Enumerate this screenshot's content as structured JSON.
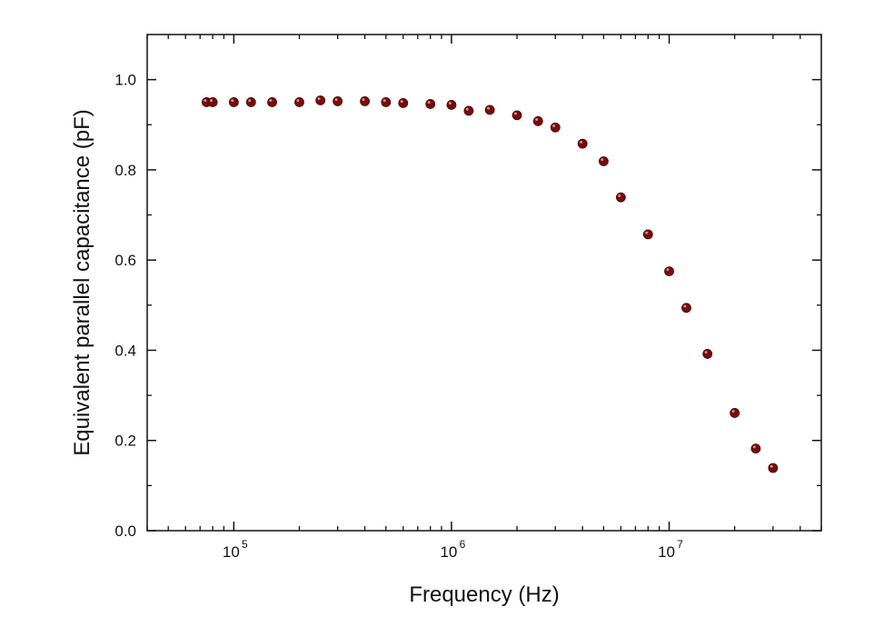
{
  "chart_data": {
    "type": "scatter",
    "title": "",
    "xlabel": "Frequency (Hz)",
    "ylabel": "Equivalent parallel capacitance (pF)",
    "x_scale": "log",
    "xlim": [
      40000,
      50000000
    ],
    "ylim": [
      0,
      1.1
    ],
    "x_ticks": [
      {
        "value": 100000,
        "base": "10",
        "exp": "5"
      },
      {
        "value": 1000000,
        "base": "10",
        "exp": "6"
      },
      {
        "value": 10000000,
        "base": "10",
        "exp": "7"
      }
    ],
    "y_ticks": [
      {
        "value": 0.0,
        "label": "0.0"
      },
      {
        "value": 0.2,
        "label": "0.2"
      },
      {
        "value": 0.4,
        "label": "0.4"
      },
      {
        "value": 0.6,
        "label": "0.6"
      },
      {
        "value": 0.8,
        "label": "0.8"
      },
      {
        "value": 1.0,
        "label": "1.0"
      }
    ],
    "grid": false,
    "legend": "none",
    "marker_color": "#7a0a0a",
    "series": [
      {
        "x": [
          75000,
          80000,
          100000,
          120000,
          150000,
          200000,
          250000,
          300000,
          400000,
          500000,
          600000,
          800000,
          1000000,
          1200000,
          1500000,
          2000000,
          2500000,
          3000000,
          4000000,
          5000000,
          6000000,
          8000000,
          10000000,
          12000000,
          15000000,
          20000000,
          25000000,
          30000000
        ],
        "y": [
          0.95,
          0.95,
          0.95,
          0.95,
          0.95,
          0.95,
          0.954,
          0.952,
          0.952,
          0.95,
          0.948,
          0.946,
          0.944,
          0.931,
          0.933,
          0.921,
          0.908,
          0.894,
          0.858,
          0.819,
          0.739,
          0.657,
          0.575,
          0.494,
          0.392,
          0.261,
          0.182,
          0.139
        ]
      }
    ]
  }
}
